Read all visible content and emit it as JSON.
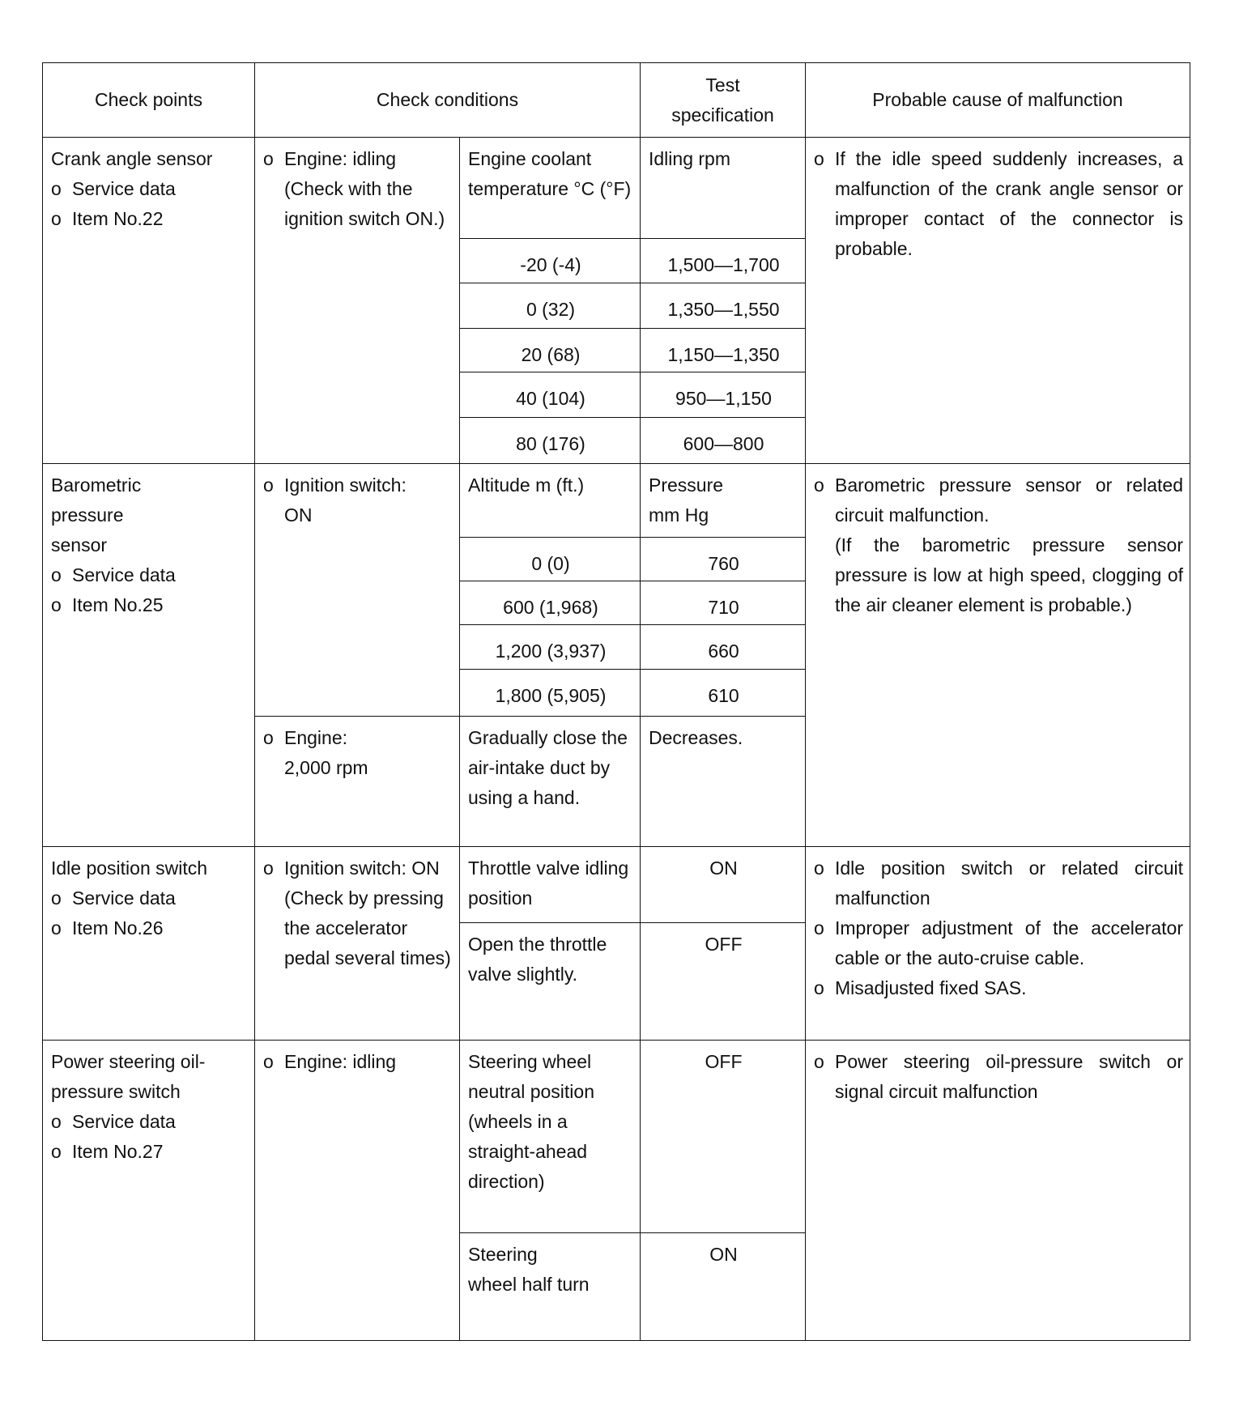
{
  "header": {
    "check_points": "Check points",
    "check_conditions": "Check conditions",
    "test_specification_line1": "Test",
    "test_specification_line2": "specification",
    "probable_cause": "Probable cause of malfunction"
  },
  "rows": [
    {
      "check_point": {
        "title": "Crank angle sensor",
        "items": [
          "Service data",
          "Item No.22"
        ]
      },
      "condition": "Engine: idling (Check with the ignition switch ON.)",
      "sub_header": {
        "label": "Engine coolant temperature °C (°F)",
        "spec": "Idling rpm"
      },
      "sub_rows": [
        {
          "label": "-20 (-4)",
          "spec": "1,500—1,700"
        },
        {
          "label": "0 (32)",
          "spec": "1,350—1,550"
        },
        {
          "label": "20 (68)",
          "spec": "1,150—1,350"
        },
        {
          "label": "40 (104)",
          "spec": "950—1,150"
        },
        {
          "label": "80 (176)",
          "spec": "600—800"
        }
      ],
      "causes": [
        "If the idle speed suddenly increases, a malfunction of the crank angle sensor or improper contact of the connector is probable."
      ]
    },
    {
      "check_point": {
        "title": "Barometric pressure sensor",
        "items": [
          "Service data",
          "Item No.25"
        ]
      },
      "condition": "Ignition switch: ON",
      "sub_header": {
        "label": "Altitude m (ft.)",
        "spec": "Pressure mm Hg"
      },
      "sub_rows": [
        {
          "label": "0 (0)",
          "spec": "760"
        },
        {
          "label": "600 (1,968)",
          "spec": "710"
        },
        {
          "label": "1,200 (3,937)",
          "spec": "660"
        },
        {
          "label": "1,800 (5,905)",
          "spec": "610"
        }
      ],
      "condition2": "Engine: 2,000 rpm",
      "sub_row2": {
        "label": "Gradually close the air-intake duct by using a hand.",
        "spec": "Decreases."
      },
      "causes": [
        "Barometric pressure sensor or related circuit malfunction."
      ],
      "note": "(If the barometric pressure sensor pressure is low at high speed, clogging of the air cleaner element is probable.)"
    },
    {
      "check_point": {
        "title": "Idle position switch",
        "items": [
          "Service data",
          "Item No.26"
        ]
      },
      "condition": "Ignition switch: ON (Check by pressing the accelerator pedal several times)",
      "sub_rows": [
        {
          "label": "Throttle valve idling position",
          "spec": "ON"
        },
        {
          "label": "Open the throttle valve slightly.",
          "spec": "OFF"
        }
      ],
      "causes": [
        "Idle position switch or related circuit malfunction",
        "Improper adjustment of the accelerator cable or the auto-cruise cable.",
        "Misadjusted fixed SAS."
      ]
    },
    {
      "check_point": {
        "title": "Power steering oil-pressure switch",
        "items": [
          "Service data",
          "Item No.27"
        ]
      },
      "condition": "Engine: idling",
      "sub_rows": [
        {
          "label": "Steering wheel neutral position (wheels in a straight-ahead direction)",
          "spec": "OFF"
        },
        {
          "label": "Steering wheel half turn",
          "spec": "ON"
        }
      ],
      "causes": [
        "Power steering oil-pressure switch or signal circuit malfunction"
      ]
    }
  ]
}
